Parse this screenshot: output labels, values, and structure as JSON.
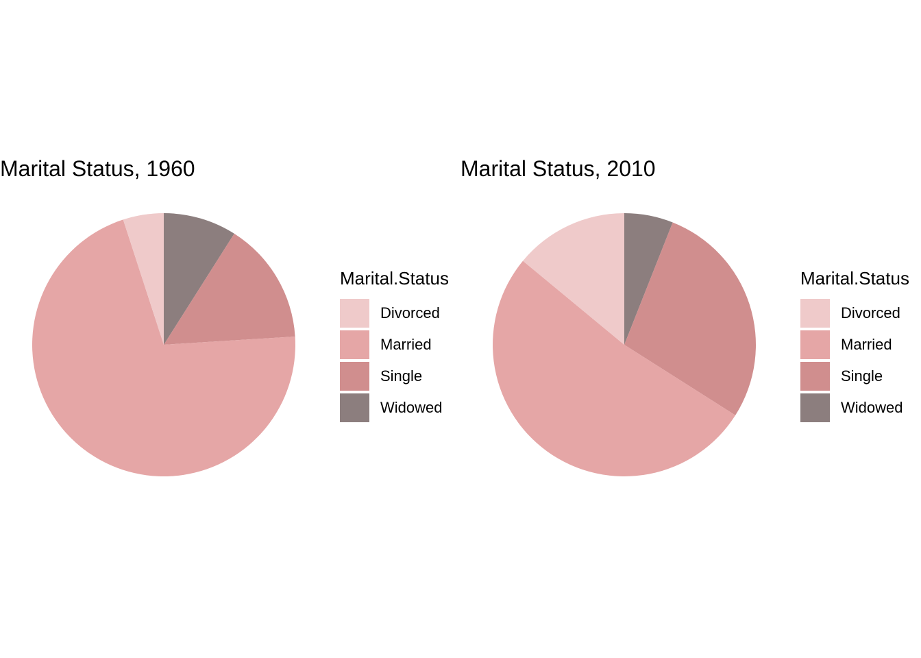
{
  "chart_data": [
    {
      "type": "pie",
      "title": "Marital Status, 1960",
      "legend_title": "Marital.Status",
      "legend_position": "right",
      "categories": [
        "Divorced",
        "Married",
        "Single",
        "Widowed"
      ],
      "values": [
        5,
        71,
        15,
        9
      ],
      "colors": [
        "#EFCACA",
        "#E5A6A6",
        "#D08E8E",
        "#8C7E7E"
      ]
    },
    {
      "type": "pie",
      "title": "Marital Status, 2010",
      "legend_title": "Marital.Status",
      "legend_position": "right",
      "categories": [
        "Divorced",
        "Married",
        "Single",
        "Widowed"
      ],
      "values": [
        14,
        52,
        28,
        6
      ],
      "colors": [
        "#EFCACA",
        "#E5A6A6",
        "#D08E8E",
        "#8C7E7E"
      ]
    }
  ]
}
